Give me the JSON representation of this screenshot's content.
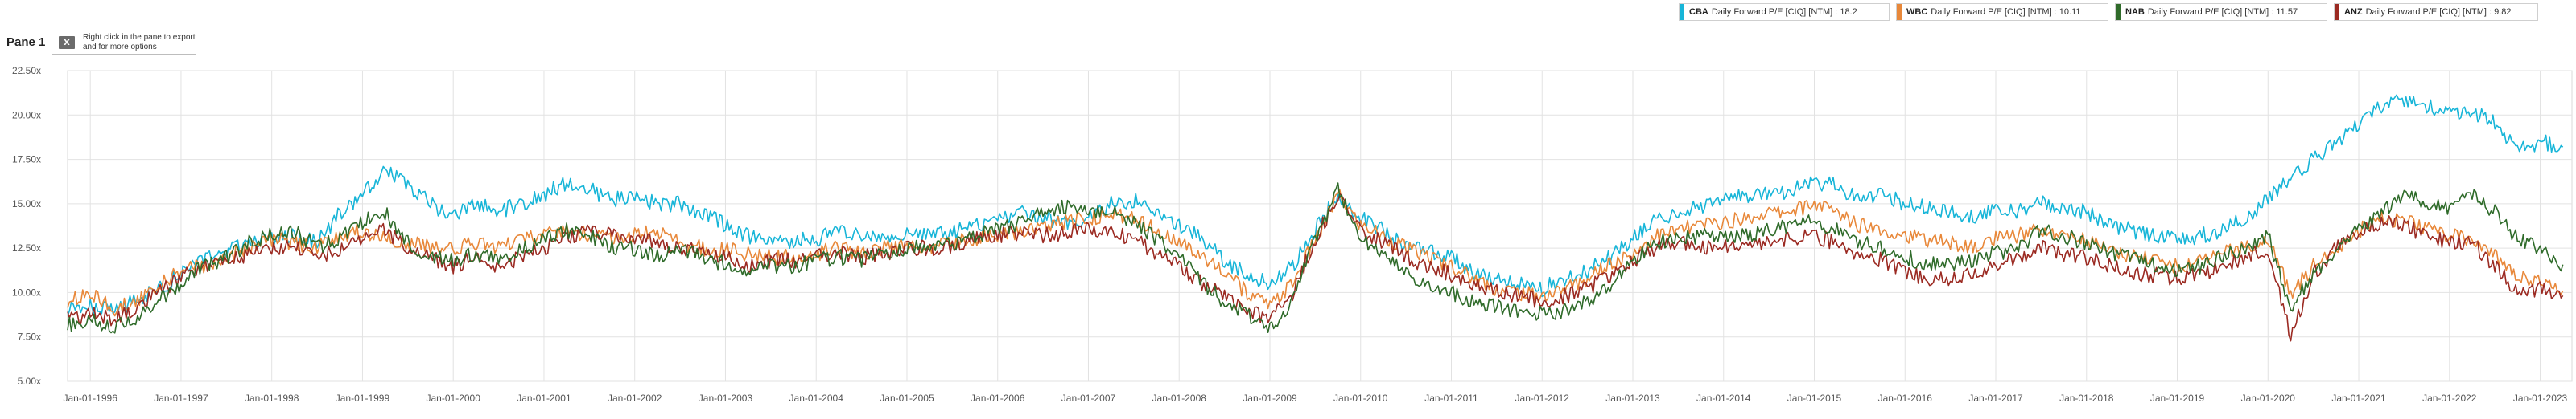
{
  "pane": {
    "title": "Pane 1",
    "export_hint": "Right click in the pane to export and for more options",
    "export_icon": "excel-icon"
  },
  "legend": [
    {
      "ticker": "CBA",
      "label": "Daily Forward P/E [CIQ] [NTM] : 18.2",
      "color": "#17b5d8"
    },
    {
      "ticker": "WBC",
      "label": "Daily Forward P/E [CIQ] [NTM] : 10.11",
      "color": "#e8883a"
    },
    {
      "ticker": "NAB",
      "label": "Daily Forward P/E [CIQ] [NTM] : 11.57",
      "color": "#2f6b2a"
    },
    {
      "ticker": "ANZ",
      "label": "Daily Forward P/E [CIQ] [NTM] : 9.82",
      "color": "#9b2a22"
    }
  ],
  "chart_data": {
    "type": "line",
    "title": "",
    "xlabel": "",
    "ylabel": "",
    "grid": true,
    "legend_position": "top-right",
    "xlim": [
      1995.75,
      2023.35
    ],
    "ylim": [
      5.0,
      22.5
    ],
    "y_ticks": [
      5.0,
      7.5,
      10.0,
      12.5,
      15.0,
      17.5,
      20.0,
      22.5
    ],
    "y_tick_labels": [
      "5.00x",
      "7.50x",
      "10.00x",
      "12.50x",
      "15.00x",
      "17.50x",
      "20.00x",
      "22.50x"
    ],
    "x_ticks": [
      1996,
      1997,
      1998,
      1999,
      2000,
      2001,
      2002,
      2003,
      2004,
      2005,
      2006,
      2007,
      2008,
      2009,
      2010,
      2011,
      2012,
      2013,
      2014,
      2015,
      2016,
      2017,
      2018,
      2019,
      2020,
      2021,
      2022,
      2023
    ],
    "x_tick_labels": [
      "Jan-01-1996",
      "Jan-01-1997",
      "Jan-01-1998",
      "Jan-01-1999",
      "Jan-01-2000",
      "Jan-01-2001",
      "Jan-01-2002",
      "Jan-01-2003",
      "Jan-01-2004",
      "Jan-01-2005",
      "Jan-01-2006",
      "Jan-01-2007",
      "Jan-01-2008",
      "Jan-01-2009",
      "Jan-01-2010",
      "Jan-01-2011",
      "Jan-01-2012",
      "Jan-01-2013",
      "Jan-01-2014",
      "Jan-01-2015",
      "Jan-01-2016",
      "Jan-01-2017",
      "Jan-01-2018",
      "Jan-01-2019",
      "Jan-01-2020",
      "Jan-01-2021",
      "Jan-01-2022",
      "Jan-01-2023"
    ],
    "x": [
      1995.75,
      1996.0,
      1996.25,
      1996.5,
      1996.75,
      1997.0,
      1997.25,
      1997.5,
      1997.75,
      1998.0,
      1998.25,
      1998.5,
      1998.75,
      1999.0,
      1999.25,
      1999.5,
      1999.75,
      2000.0,
      2000.25,
      2000.5,
      2000.75,
      2001.0,
      2001.25,
      2001.5,
      2001.75,
      2002.0,
      2002.25,
      2002.5,
      2002.75,
      2003.0,
      2003.25,
      2003.5,
      2003.75,
      2004.0,
      2004.25,
      2004.5,
      2004.75,
      2005.0,
      2005.25,
      2005.5,
      2005.75,
      2006.0,
      2006.25,
      2006.5,
      2006.75,
      2007.0,
      2007.25,
      2007.5,
      2007.75,
      2008.0,
      2008.25,
      2008.5,
      2008.75,
      2009.0,
      2009.25,
      2009.5,
      2009.75,
      2010.0,
      2010.25,
      2010.5,
      2010.75,
      2011.0,
      2011.25,
      2011.5,
      2011.75,
      2012.0,
      2012.25,
      2012.5,
      2012.75,
      2013.0,
      2013.25,
      2013.5,
      2013.75,
      2014.0,
      2014.25,
      2014.5,
      2014.75,
      2015.0,
      2015.25,
      2015.5,
      2015.75,
      2016.0,
      2016.25,
      2016.5,
      2016.75,
      2017.0,
      2017.25,
      2017.5,
      2017.75,
      2018.0,
      2018.25,
      2018.5,
      2018.75,
      2019.0,
      2019.25,
      2019.5,
      2019.75,
      2020.0,
      2020.25,
      2020.5,
      2020.75,
      2021.0,
      2021.25,
      2021.5,
      2021.75,
      2022.0,
      2022.25,
      2022.5,
      2022.75,
      2023.0,
      2023.25
    ],
    "series": [
      {
        "name": "CBA",
        "values": [
          9.0,
          9.2,
          9.0,
          9.5,
          10.2,
          11.0,
          11.8,
          12.3,
          12.8,
          13.0,
          13.2,
          12.8,
          14.5,
          15.5,
          17.0,
          16.0,
          15.0,
          14.2,
          15.0,
          14.6,
          15.0,
          15.5,
          16.2,
          15.8,
          15.2,
          15.4,
          15.0,
          15.0,
          14.5,
          13.8,
          13.2,
          12.8,
          12.9,
          13.0,
          13.5,
          13.2,
          13.0,
          13.2,
          13.2,
          13.4,
          13.8,
          14.0,
          14.5,
          14.2,
          14.0,
          14.2,
          15.0,
          15.2,
          14.5,
          13.8,
          13.0,
          11.8,
          11.0,
          10.5,
          11.5,
          13.5,
          15.5,
          14.2,
          13.5,
          12.5,
          12.3,
          12.0,
          11.2,
          10.8,
          10.5,
          10.2,
          10.8,
          11.2,
          12.0,
          13.0,
          14.2,
          14.5,
          14.8,
          15.2,
          15.5,
          15.5,
          15.8,
          16.2,
          16.0,
          15.2,
          15.5,
          15.0,
          14.8,
          14.5,
          14.2,
          14.8,
          14.6,
          15.0,
          14.8,
          14.5,
          13.8,
          13.5,
          13.2,
          13.0,
          13.2,
          13.5,
          14.2,
          15.2,
          16.5,
          17.5,
          18.5,
          19.5,
          20.5,
          20.8,
          20.5,
          20.0,
          20.2,
          19.5,
          18.0,
          18.5,
          18.2
        ]
      },
      {
        "name": "WBC",
        "values": [
          9.5,
          10.0,
          9.0,
          9.5,
          10.5,
          11.2,
          11.5,
          12.0,
          12.5,
          13.0,
          12.8,
          12.5,
          13.2,
          13.5,
          13.0,
          12.8,
          12.5,
          12.5,
          12.8,
          12.6,
          13.0,
          13.2,
          13.5,
          13.2,
          13.0,
          13.2,
          13.4,
          12.8,
          12.5,
          12.4,
          12.2,
          12.0,
          12.0,
          12.2,
          12.5,
          12.2,
          12.5,
          12.8,
          12.6,
          12.8,
          13.0,
          13.2,
          13.4,
          13.8,
          14.0,
          14.2,
          14.4,
          14.2,
          13.5,
          12.8,
          12.0,
          11.0,
          10.0,
          9.2,
          10.5,
          13.0,
          15.5,
          13.8,
          13.2,
          12.5,
          12.0,
          11.5,
          10.8,
          10.2,
          10.0,
          9.8,
          10.2,
          10.8,
          11.5,
          12.2,
          13.2,
          13.5,
          13.8,
          14.0,
          14.2,
          14.5,
          14.6,
          15.0,
          14.5,
          13.8,
          13.6,
          13.2,
          13.0,
          12.8,
          12.5,
          13.0,
          13.2,
          13.5,
          13.2,
          13.0,
          12.4,
          12.0,
          11.8,
          11.5,
          11.8,
          12.2,
          12.5,
          13.0,
          10.0,
          11.5,
          12.5,
          13.5,
          14.2,
          14.0,
          13.6,
          13.2,
          13.0,
          12.0,
          11.0,
          10.5,
          10.1
        ]
      },
      {
        "name": "NAB",
        "values": [
          8.2,
          8.5,
          8.0,
          8.5,
          9.5,
          10.5,
          11.5,
          12.0,
          12.8,
          13.2,
          13.4,
          12.6,
          13.0,
          14.0,
          14.5,
          12.8,
          12.0,
          11.8,
          12.2,
          11.8,
          12.5,
          13.0,
          13.5,
          13.2,
          12.5,
          12.5,
          12.0,
          12.5,
          12.0,
          11.6,
          11.0,
          11.5,
          11.5,
          11.8,
          12.0,
          11.8,
          12.2,
          12.5,
          12.5,
          12.6,
          13.2,
          13.5,
          14.0,
          14.5,
          14.8,
          14.6,
          14.5,
          14.0,
          13.0,
          12.0,
          10.5,
          9.5,
          8.8,
          8.0,
          9.5,
          13.0,
          15.8,
          13.0,
          12.0,
          11.0,
          10.5,
          10.0,
          9.5,
          9.2,
          9.0,
          8.8,
          9.0,
          9.5,
          10.5,
          11.8,
          12.8,
          13.0,
          13.2,
          13.0,
          13.2,
          13.5,
          13.8,
          14.0,
          13.5,
          12.8,
          12.5,
          12.0,
          11.6,
          11.5,
          11.8,
          12.2,
          12.5,
          13.5,
          13.2,
          12.8,
          12.2,
          12.0,
          11.6,
          11.2,
          11.5,
          12.0,
          12.5,
          13.2,
          9.2,
          11.0,
          12.5,
          13.5,
          14.5,
          15.5,
          15.0,
          14.8,
          15.5,
          14.5,
          13.0,
          12.5,
          11.57
        ]
      },
      {
        "name": "ANZ",
        "values": [
          8.5,
          8.8,
          8.5,
          9.0,
          10.0,
          10.8,
          11.5,
          11.8,
          12.2,
          12.5,
          12.5,
          12.0,
          12.5,
          13.0,
          13.5,
          12.5,
          12.0,
          11.5,
          12.0,
          11.5,
          12.0,
          12.5,
          13.0,
          13.5,
          13.2,
          13.0,
          12.8,
          12.5,
          12.2,
          12.0,
          11.5,
          11.8,
          11.8,
          12.0,
          12.2,
          12.0,
          12.2,
          12.5,
          12.5,
          12.6,
          13.0,
          13.2,
          13.4,
          13.2,
          13.4,
          13.5,
          13.4,
          13.0,
          12.2,
          11.5,
          10.5,
          9.8,
          9.0,
          8.5,
          10.0,
          13.0,
          15.5,
          13.5,
          12.8,
          12.0,
          11.5,
          11.0,
          10.5,
          10.0,
          9.8,
          9.5,
          9.8,
          10.2,
          11.0,
          11.8,
          12.5,
          12.8,
          12.5,
          12.6,
          12.5,
          12.8,
          13.0,
          13.2,
          12.8,
          12.0,
          11.8,
          11.2,
          10.8,
          10.8,
          11.0,
          11.5,
          12.0,
          12.5,
          12.2,
          12.0,
          11.5,
          11.0,
          11.0,
          10.8,
          11.0,
          11.5,
          12.0,
          12.5,
          7.5,
          11.0,
          12.5,
          13.5,
          14.0,
          13.8,
          13.2,
          12.8,
          12.8,
          11.5,
          10.0,
          10.2,
          9.82
        ]
      }
    ]
  }
}
